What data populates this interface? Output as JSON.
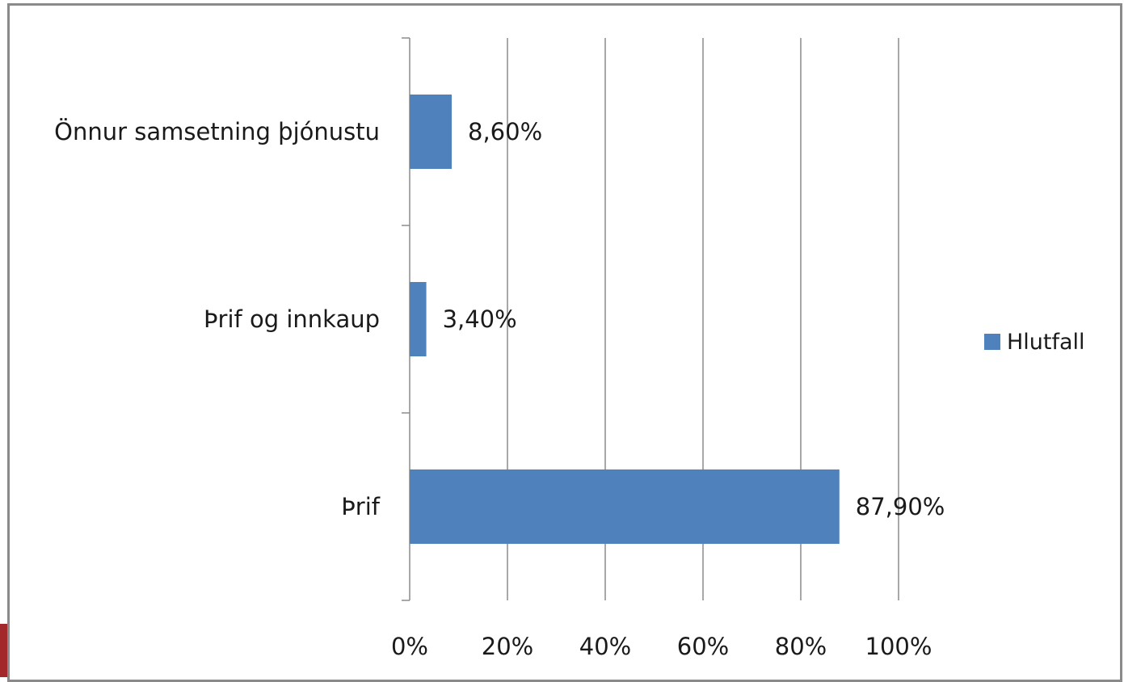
{
  "chart_data": {
    "type": "bar",
    "orientation": "horizontal",
    "categories": [
      "Önnur samsetning þjónustu",
      "Þrif og innkaup",
      "Þrif"
    ],
    "series": [
      {
        "name": "Hlutfall",
        "values": [
          8.6,
          3.4,
          87.9
        ],
        "labels": [
          "8,60%",
          "3,40%",
          "87,90%"
        ],
        "color": "#4f81bd"
      }
    ],
    "xlim": [
      0,
      100
    ],
    "xticks": [
      0,
      20,
      40,
      60,
      80,
      100
    ],
    "xtick_labels": [
      "0%",
      "20%",
      "40%",
      "60%",
      "80%",
      "100%"
    ],
    "grid": "vertical",
    "legend_position": "right",
    "title": "",
    "xlabel": "",
    "ylabel": ""
  },
  "colors": {
    "bar": "#4f81bd",
    "grid": "#8c8c8c",
    "frame": "#8a8a8a",
    "corner_mark": "#a3282b"
  }
}
